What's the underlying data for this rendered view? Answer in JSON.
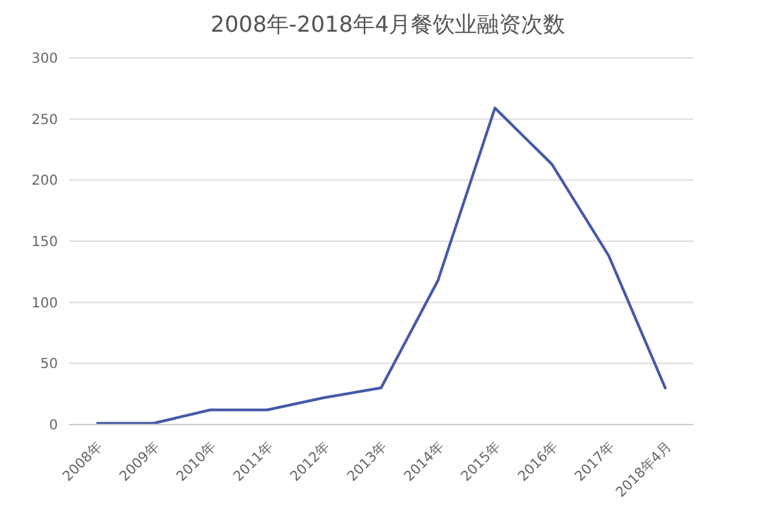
{
  "chart_data": {
    "type": "line",
    "title": "2008年-2018年4月餐饮业融资次数",
    "categories": [
      "2008年",
      "2009年",
      "2010年",
      "2011年",
      "2012年",
      "2013年",
      "2014年",
      "2015年",
      "2016年",
      "2017年",
      "2018年4月"
    ],
    "series": [
      {
        "color": "#4659a8",
        "values": [
          1,
          1,
          12,
          12,
          22,
          30,
          118,
          259,
          213,
          138,
          29
        ]
      }
    ],
    "ylim": [
      0,
      300
    ],
    "yticks": [
      0,
      50,
      100,
      150,
      200,
      250,
      300
    ],
    "grid": "y",
    "legend": false,
    "marker": "none",
    "line_style": "solid"
  }
}
